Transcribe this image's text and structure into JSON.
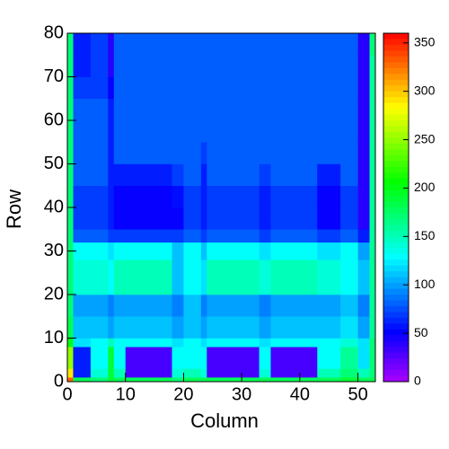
{
  "chart_data": {
    "type": "heatmap",
    "x_label": "Column",
    "y_label": "Row",
    "xbins": [
      0,
      1,
      4,
      7,
      8,
      10,
      18,
      20,
      23,
      24,
      33,
      35,
      43,
      47,
      50,
      52,
      53
    ],
    "ybins": [
      0,
      1,
      3,
      8,
      10,
      15,
      20,
      28,
      32,
      35,
      40,
      45,
      50,
      55,
      60,
      65,
      70,
      75,
      80
    ],
    "z": [
      [
        330,
        180,
        170,
        190,
        180,
        180,
        170,
        180,
        180,
        180,
        180,
        180,
        180,
        190,
        180,
        180
      ],
      [
        290,
        60,
        140,
        190,
        150,
        30,
        140,
        150,
        140,
        30,
        140,
        30,
        150,
        170,
        150,
        170
      ],
      [
        250,
        60,
        130,
        190,
        130,
        30,
        130,
        130,
        130,
        30,
        130,
        30,
        130,
        160,
        120,
        170
      ],
      [
        200,
        120,
        130,
        150,
        130,
        130,
        120,
        130,
        120,
        130,
        120,
        130,
        130,
        140,
        120,
        170
      ],
      [
        180,
        110,
        110,
        100,
        110,
        110,
        100,
        110,
        100,
        110,
        100,
        110,
        110,
        120,
        100,
        160
      ],
      [
        170,
        100,
        100,
        90,
        100,
        100,
        90,
        110,
        90,
        100,
        90,
        100,
        100,
        110,
        90,
        160
      ],
      [
        170,
        140,
        140,
        130,
        150,
        150,
        110,
        130,
        120,
        150,
        140,
        150,
        140,
        130,
        110,
        160
      ],
      [
        170,
        130,
        130,
        120,
        130,
        130,
        110,
        130,
        110,
        130,
        120,
        130,
        120,
        130,
        100,
        160
      ],
      [
        170,
        80,
        80,
        70,
        70,
        70,
        70,
        80,
        70,
        80,
        70,
        80,
        70,
        80,
        60,
        160
      ],
      [
        170,
        70,
        70,
        60,
        50,
        50,
        50,
        70,
        60,
        70,
        60,
        70,
        50,
        70,
        40,
        160
      ],
      [
        170,
        70,
        70,
        60,
        50,
        50,
        55,
        70,
        60,
        70,
        60,
        70,
        50,
        70,
        40,
        160
      ],
      [
        170,
        80,
        80,
        60,
        60,
        60,
        70,
        80,
        60,
        80,
        70,
        80,
        60,
        80,
        40,
        160
      ],
      [
        170,
        80,
        80,
        60,
        80,
        80,
        80,
        80,
        70,
        80,
        80,
        80,
        80,
        80,
        40,
        160
      ],
      [
        170,
        80,
        80,
        60,
        80,
        80,
        80,
        80,
        80,
        80,
        80,
        80,
        80,
        80,
        40,
        160
      ],
      [
        170,
        80,
        80,
        60,
        80,
        80,
        80,
        80,
        80,
        80,
        80,
        80,
        80,
        80,
        40,
        160
      ],
      [
        170,
        70,
        70,
        50,
        80,
        80,
        80,
        80,
        80,
        80,
        80,
        80,
        80,
        80,
        40,
        160
      ],
      [
        170,
        60,
        70,
        40,
        80,
        80,
        80,
        80,
        80,
        80,
        80,
        80,
        80,
        80,
        40,
        160
      ],
      [
        170,
        60,
        70,
        40,
        80,
        80,
        80,
        80,
        80,
        80,
        80,
        80,
        80,
        80,
        40,
        170
      ]
    ],
    "xlim": [
      0,
      53
    ],
    "ylim": [
      0,
      80
    ],
    "zlim": [
      0,
      360
    ],
    "xticks": [
      0,
      10,
      20,
      30,
      40,
      50
    ],
    "yticks": [
      0,
      10,
      20,
      30,
      40,
      50,
      60,
      70,
      80
    ],
    "zticks": [
      0,
      50,
      100,
      150,
      200,
      250,
      300,
      350
    ]
  }
}
